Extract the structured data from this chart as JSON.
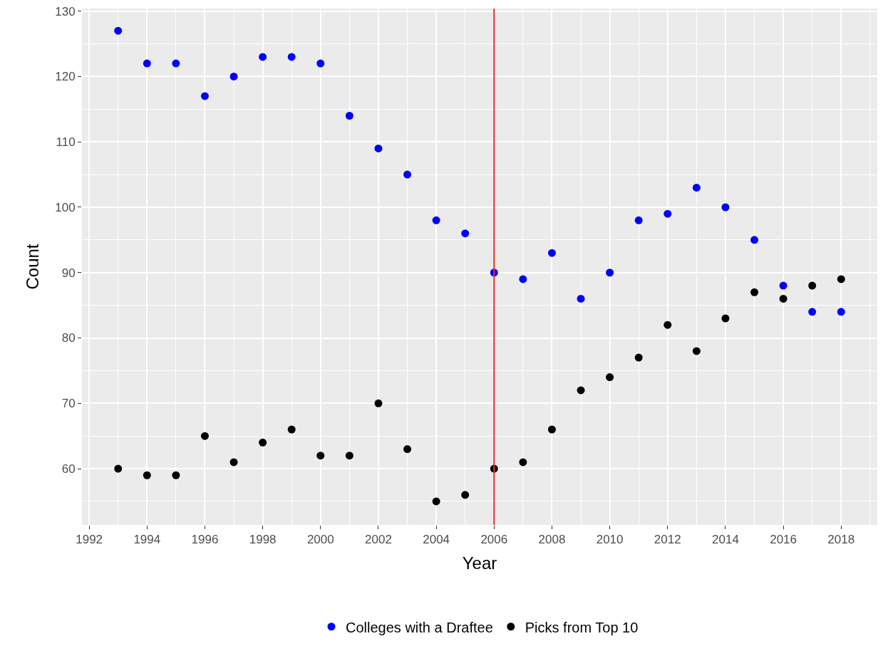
{
  "chart_data": {
    "type": "scatter",
    "xlabel": "Year",
    "ylabel": "Count",
    "x": [
      1993,
      1994,
      1995,
      1996,
      1997,
      1998,
      1999,
      2000,
      2001,
      2002,
      2003,
      2004,
      2005,
      2006,
      2007,
      2008,
      2009,
      2010,
      2011,
      2012,
      2013,
      2014,
      2015,
      2016,
      2017,
      2018
    ],
    "series": [
      {
        "name": "Colleges with a Draftee",
        "color": "#0000ff",
        "values": [
          127,
          122,
          122,
          117,
          120,
          123,
          123,
          122,
          114,
          109,
          105,
          98,
          96,
          90,
          89,
          93,
          86,
          90,
          98,
          99,
          103,
          100,
          95,
          88,
          84,
          84
        ]
      },
      {
        "name": "Picks from Top 10",
        "color": "#000000",
        "values": [
          60,
          59,
          59,
          65,
          61,
          64,
          66,
          62,
          62,
          70,
          63,
          55,
          56,
          60,
          61,
          66,
          72,
          74,
          77,
          82,
          78,
          83,
          87,
          86,
          88,
          89
        ]
      }
    ],
    "xlim": [
      1991.75,
      2019.25
    ],
    "xticks": [
      1992,
      1994,
      1996,
      1998,
      2000,
      2002,
      2004,
      2006,
      2008,
      2010,
      2012,
      2014,
      2016,
      2018
    ],
    "ylim": [
      51.4,
      130.4
    ],
    "yticks": [
      60,
      70,
      80,
      90,
      100,
      110,
      120,
      130
    ],
    "ref_lines": [
      {
        "axis": "x",
        "value": 2006,
        "color": "#e0302c"
      }
    ],
    "grid": true,
    "legend": "bottom",
    "marker": "circle"
  }
}
